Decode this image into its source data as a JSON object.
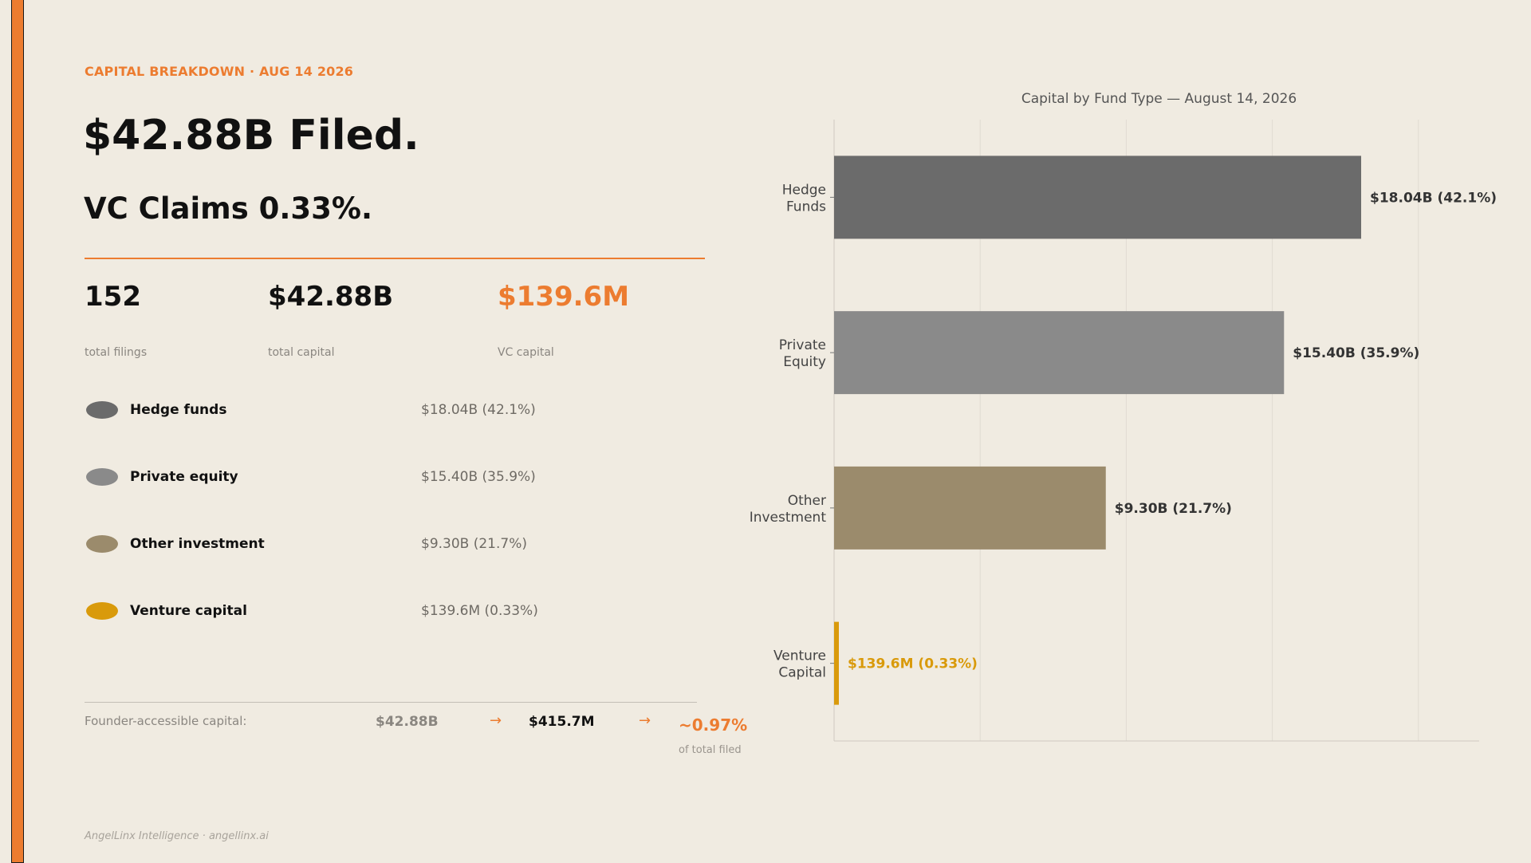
{
  "header": {
    "eyebrow": "CAPITAL BREAKDOWN  ·  AUG 14 2026",
    "headline": "$42.88B Filed.",
    "subhead": "VC Claims 0.33%."
  },
  "stats": [
    {
      "value": "152",
      "label": "total filings",
      "highlight": false
    },
    {
      "value": "$42.88B",
      "label": "total capital",
      "highlight": false
    },
    {
      "value": "$139.6M",
      "label": "VC capital",
      "highlight": true
    }
  ],
  "legend": [
    {
      "name": "Hedge funds",
      "value": "$18.04B   (42.1%)",
      "color": "#6b6b6b"
    },
    {
      "name": "Private equity",
      "value": "$15.40B   (35.9%)",
      "color": "#8a8a8a"
    },
    {
      "name": "Other investment",
      "value": "$9.30B   (21.7%)",
      "color": "#9b8b6c"
    },
    {
      "name": "Venture capital",
      "value": "$139.6M   (0.33%)",
      "color": "#d99a0b"
    }
  ],
  "founder": {
    "label": "Founder-accessible capital:",
    "total": "$42.88B",
    "arrow": "→",
    "vc": "$415.7M",
    "pct": "~0.97%",
    "pct_sub": "of total filed"
  },
  "footer": "AngelLinx Intelligence  ·  angellinx.ai",
  "colors": {
    "accent": "#ec7c30",
    "background": "#f0ebe1"
  },
  "chart_data": {
    "type": "bar",
    "orientation": "horizontal",
    "title": "Capital by Fund Type  —  August 14, 2026",
    "categories": [
      "Hedge\nFunds",
      "Private\nEquity",
      "Other\nInvestment",
      "Venture\nCapital"
    ],
    "values": [
      18.04,
      15.4,
      9.3,
      0.1396
    ],
    "unit": "B",
    "data_labels": [
      "$18.04B  (42.1%)",
      "$15.40B  (35.9%)",
      "$9.30B  (21.7%)",
      "$139.6M  (0.33%)"
    ],
    "colors": [
      "#6b6b6b",
      "#8a8a8a",
      "#9b8b6c",
      "#d99a0b"
    ],
    "label_colors": [
      "#333333",
      "#333333",
      "#333333",
      "#d99a0b"
    ],
    "xlim": [
      0,
      22
    ],
    "grid": true,
    "xlabel": "",
    "ylabel": ""
  }
}
